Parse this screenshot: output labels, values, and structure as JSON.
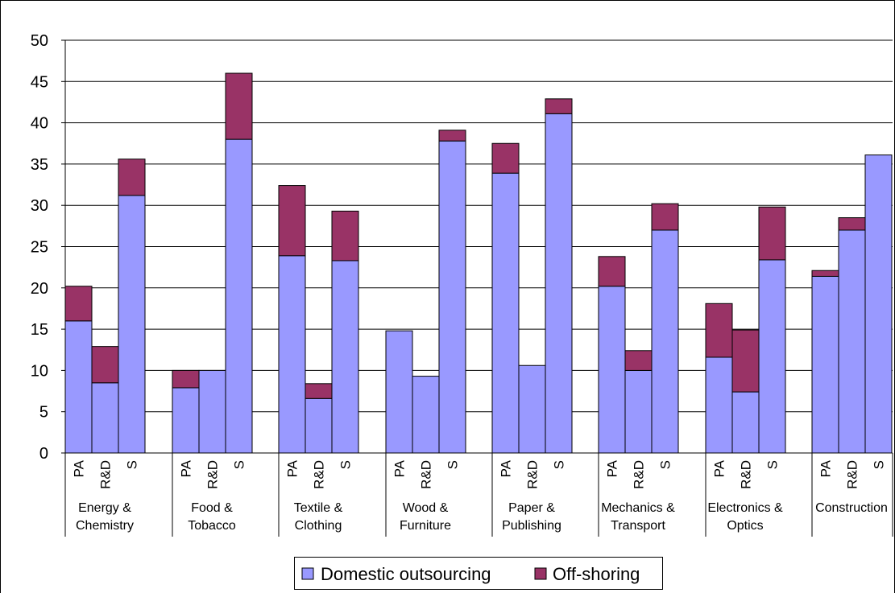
{
  "chart_data": {
    "type": "bar",
    "stacked": true,
    "ylim": [
      0,
      50
    ],
    "yticks": [
      "0",
      "5",
      "10",
      "15",
      "20",
      "25",
      "30",
      "35",
      "40",
      "45",
      "50"
    ],
    "grid": true,
    "legend_position": "bottom",
    "sub_categories": [
      "PA",
      "R&D",
      "S"
    ],
    "groups": [
      {
        "name": "Energy & Chemistry",
        "lines": [
          "Energy &",
          "Chemistry"
        ]
      },
      {
        "name": "Food & Tobacco",
        "lines": [
          "Food &",
          "Tobacco"
        ]
      },
      {
        "name": "Textile & Clothing",
        "lines": [
          "Textile &",
          "Clothing"
        ]
      },
      {
        "name": "Wood & Furniture",
        "lines": [
          "Wood &",
          "Furniture"
        ]
      },
      {
        "name": "Paper & Publishing",
        "lines": [
          "Paper &",
          "Publishing"
        ]
      },
      {
        "name": "Mechanics & Transport",
        "lines": [
          "Mechanics &",
          "Transport"
        ]
      },
      {
        "name": "Electronics & Optics",
        "lines": [
          "Electronics &",
          "Optics"
        ]
      },
      {
        "name": "Construction",
        "lines": [
          "Construction"
        ]
      }
    ],
    "series": [
      {
        "name": "Domestic outsourcing",
        "color": "#9999ff",
        "values": [
          [
            16.0,
            8.5,
            31.2
          ],
          [
            7.9,
            10.0,
            38.0
          ],
          [
            23.9,
            6.6,
            23.3
          ],
          [
            14.8,
            9.3,
            37.8
          ],
          [
            33.9,
            10.6,
            41.1
          ],
          [
            20.2,
            10.0,
            27.0
          ],
          [
            11.6,
            7.4,
            23.4
          ],
          [
            21.4,
            27.0,
            36.1
          ]
        ]
      },
      {
        "name": "Off-shoring",
        "color": "#993366",
        "values": [
          [
            4.2,
            4.4,
            4.4
          ],
          [
            2.1,
            0.0,
            8.0
          ],
          [
            8.5,
            1.8,
            6.0
          ],
          [
            0.0,
            0.0,
            1.3
          ],
          [
            3.6,
            0.0,
            1.8
          ],
          [
            3.6,
            2.4,
            3.2
          ],
          [
            6.5,
            7.5,
            6.4
          ],
          [
            0.7,
            1.5,
            0.0
          ]
        ]
      }
    ]
  }
}
